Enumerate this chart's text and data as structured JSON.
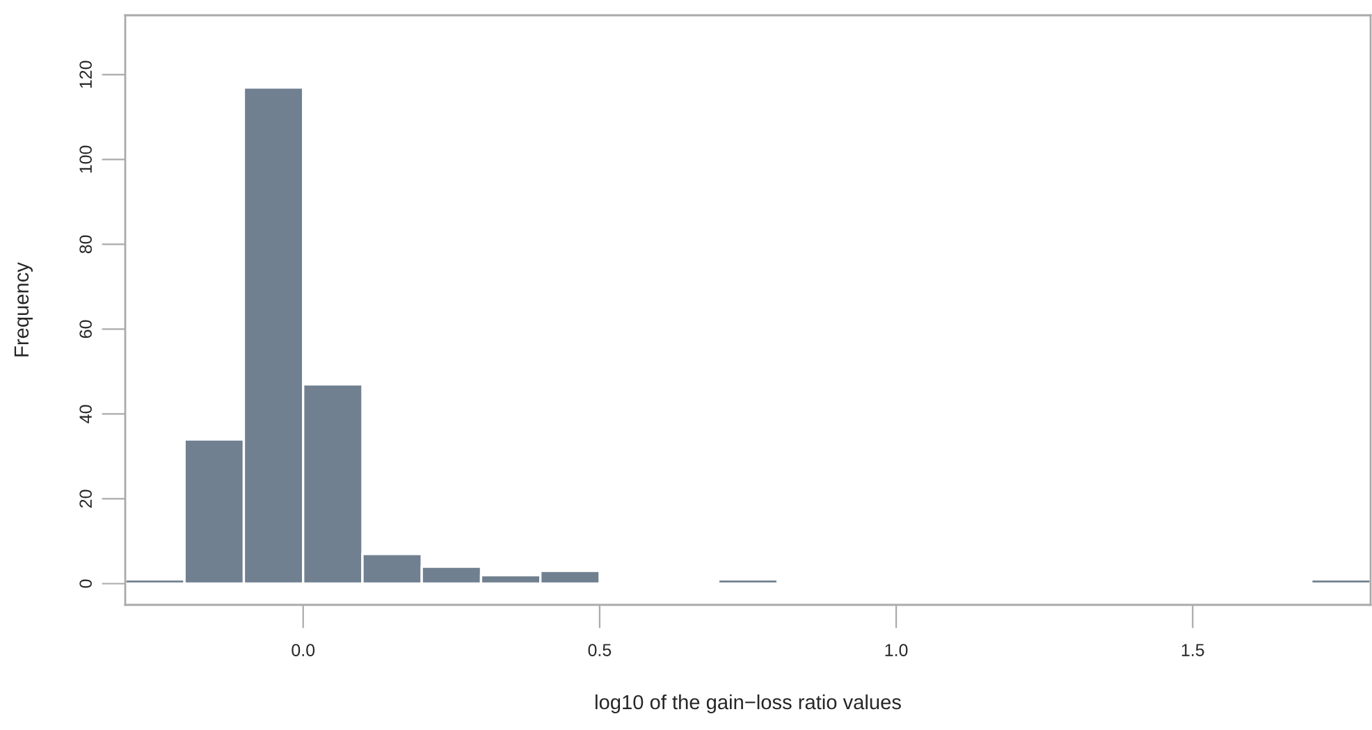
{
  "chart_data": {
    "type": "histogram",
    "xlabel": "log10 of the gain−loss ratio values",
    "ylabel": "Frequency",
    "bins": [
      -0.3,
      -0.2,
      -0.1,
      0.0,
      0.1,
      0.2,
      0.3,
      0.4,
      0.5,
      0.6,
      0.7,
      0.8,
      0.9,
      1.0,
      1.1,
      1.2,
      1.3,
      1.4,
      1.5,
      1.6,
      1.7,
      1.8
    ],
    "values": [
      1,
      34,
      117,
      47,
      7,
      4,
      2,
      3,
      0,
      0,
      1,
      0,
      0,
      0,
      0,
      0,
      0,
      0,
      0,
      0,
      1
    ],
    "color": "#708090",
    "xlim": [
      -0.3,
      1.8
    ],
    "ylim": [
      -5,
      134
    ],
    "xticks": [
      {
        "value": 0,
        "label": "0.0"
      },
      0.5,
      {
        "value": 1,
        "label": "1.0"
      },
      1.5
    ],
    "yticks": [
      0,
      20,
      40,
      60,
      80,
      100,
      120
    ],
    "grid": false
  }
}
